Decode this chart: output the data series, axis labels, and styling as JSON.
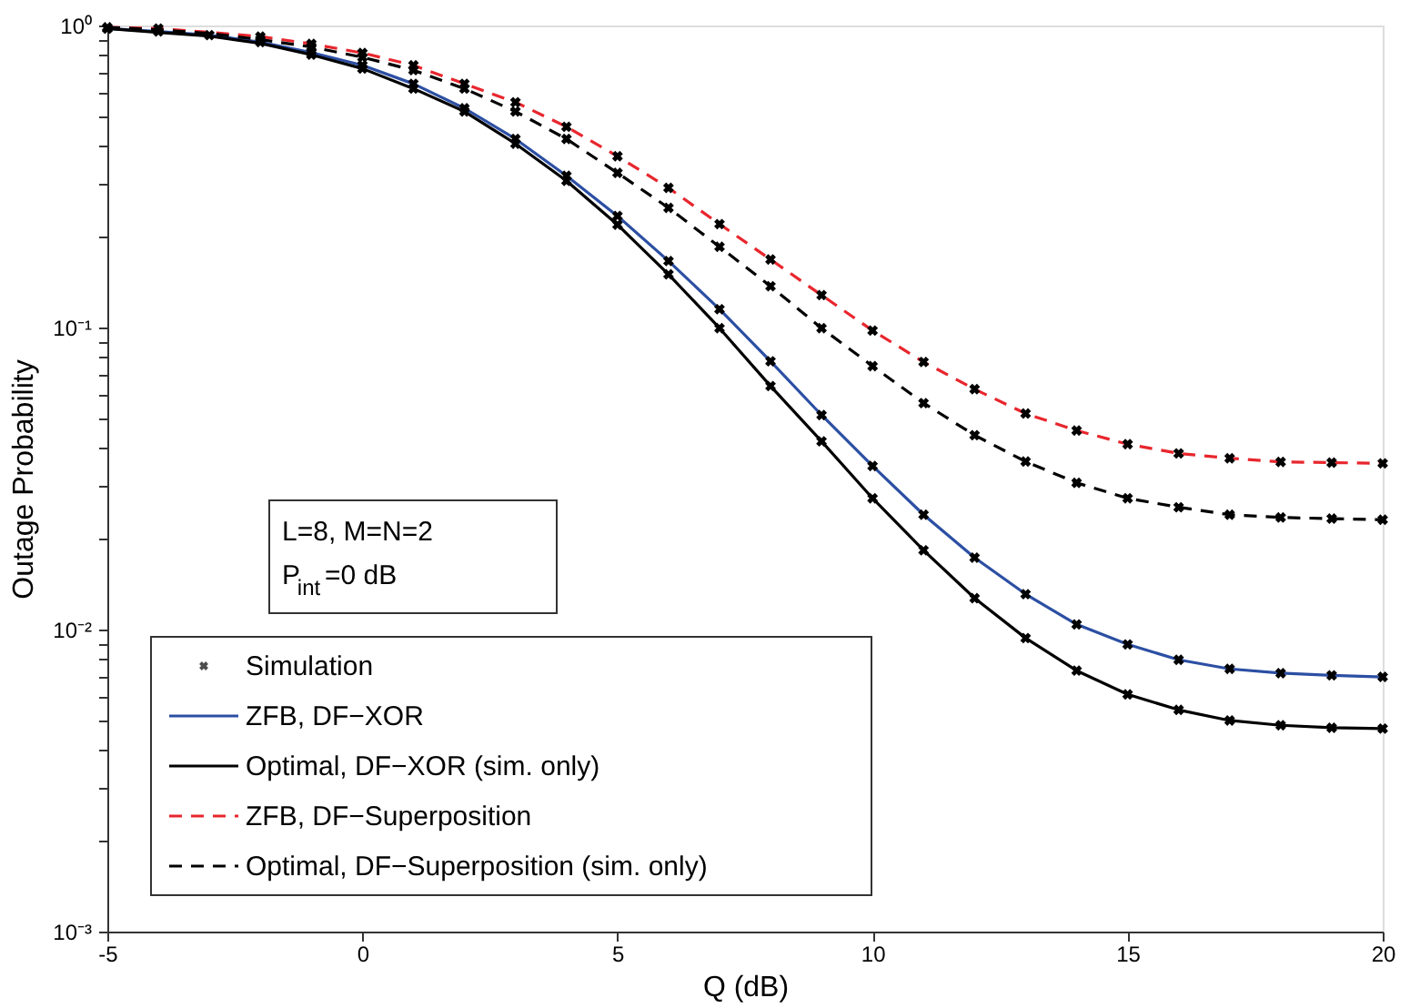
{
  "chart_data": {
    "type": "line",
    "xlabel": "Q (dB)",
    "ylabel": "Outage Probability",
    "log": "y",
    "xlim": [
      -5,
      20
    ],
    "xticks": [
      -5,
      0,
      5,
      10,
      15,
      20
    ],
    "ylim": [
      0.001,
      1
    ],
    "yticks": [
      {
        "value": 0.001,
        "label": "10⁻³"
      },
      {
        "value": 0.002,
        "label": null
      },
      {
        "value": 0.003,
        "label": null
      },
      {
        "value": 0.004,
        "label": null
      },
      {
        "value": 0.005,
        "label": null
      },
      {
        "value": 0.006,
        "label": null
      },
      {
        "value": 0.007,
        "label": null
      },
      {
        "value": 0.008,
        "label": null
      },
      {
        "value": 0.009,
        "label": null
      },
      {
        "value": 0.01,
        "label": "10⁻²"
      },
      {
        "value": 0.02,
        "label": null
      },
      {
        "value": 0.03,
        "label": null
      },
      {
        "value": 0.04,
        "label": null
      },
      {
        "value": 0.05,
        "label": null
      },
      {
        "value": 0.06,
        "label": null
      },
      {
        "value": 0.07,
        "label": null
      },
      {
        "value": 0.08,
        "label": null
      },
      {
        "value": 0.09,
        "label": null
      },
      {
        "value": 0.1,
        "label": "10⁻¹"
      },
      {
        "value": 0.2,
        "label": null
      },
      {
        "value": 0.3,
        "label": null
      },
      {
        "value": 0.4,
        "label": null
      },
      {
        "value": 0.5,
        "label": null
      },
      {
        "value": 0.6,
        "label": null
      },
      {
        "value": 0.7,
        "label": null
      },
      {
        "value": 0.8,
        "label": null
      },
      {
        "value": 0.9,
        "label": null
      },
      {
        "value": 1,
        "label": "10⁰"
      }
    ],
    "x": [
      -5,
      -4,
      -3,
      -2,
      -1,
      0,
      1,
      2,
      3,
      4,
      5,
      6,
      7,
      8,
      9,
      10,
      11,
      12,
      13,
      14,
      15,
      16,
      17,
      18,
      19,
      20
    ],
    "grid": false,
    "legend": "bottom left",
    "annotations": [
      "L=8, M=N=2",
      "P$_{int}$=0 dB"
    ],
    "series": [
      {
        "name": "Simulation",
        "type": "scatter",
        "marker": "cross",
        "color": "#000000",
        "x": [
          -5,
          -4,
          -3,
          -2,
          -1,
          0,
          1,
          2,
          3,
          4,
          5,
          6,
          7,
          8,
          9,
          10,
          11,
          12,
          13,
          14,
          15,
          16,
          17,
          18,
          19,
          20,
          -5,
          -1,
          0,
          1,
          2,
          3,
          4,
          5,
          6,
          7,
          8,
          9,
          10,
          11,
          12,
          13,
          14,
          15,
          16,
          17,
          18,
          19,
          20,
          -4,
          -2,
          -1,
          0,
          1,
          2,
          3,
          4,
          5,
          6,
          7,
          8,
          9,
          10,
          11,
          12,
          13,
          14,
          15,
          16,
          17,
          18,
          19,
          20,
          -5,
          -2,
          -1,
          0,
          1,
          2,
          3,
          4,
          5,
          6,
          7,
          8,
          9,
          10,
          11,
          12,
          13,
          14,
          15,
          16,
          17,
          18,
          19,
          20
        ],
        "values": [
          0.977,
          0.955,
          0.929,
          0.881,
          0.813,
          0.738,
          0.641,
          0.532,
          0.421,
          0.318,
          0.234,
          0.166,
          0.115,
          0.0773,
          0.0513,
          0.0348,
          0.024,
          0.0173,
          0.0131,
          0.0104,
          0.00893,
          0.00794,
          0.00741,
          0.00717,
          0.00705,
          0.00697,
          0.977,
          0.8,
          0.72,
          0.618,
          0.519,
          0.406,
          0.306,
          0.219,
          0.15,
          0.0995,
          0.064,
          0.042,
          0.0272,
          0.0183,
          0.0127,
          0.00937,
          0.00731,
          0.0061,
          0.00542,
          0.005,
          0.00482,
          0.00473,
          0.0047,
          0.977,
          0.919,
          0.869,
          0.811,
          0.738,
          0.641,
          0.557,
          0.462,
          0.369,
          0.29,
          0.22,
          0.168,
          0.128,
          0.0977,
          0.0769,
          0.0625,
          0.0519,
          0.0456,
          0.0411,
          0.0383,
          0.0369,
          0.0359,
          0.0357,
          0.0355,
          0.986,
          0.898,
          0.849,
          0.785,
          0.711,
          0.618,
          0.519,
          0.421,
          0.325,
          0.249,
          0.185,
          0.137,
          0.0995,
          0.0745,
          0.0562,
          0.044,
          0.036,
          0.0306,
          0.0272,
          0.0254,
          0.024,
          0.0235,
          0.0233,
          0.0231
        ]
      },
      {
        "name": "ZFB, DF−XOR",
        "type": "line",
        "marker": "none",
        "line_style": "solid",
        "color": "#2c4fa3",
        "values": [
          0.977,
          0.955,
          0.929,
          0.881,
          0.813,
          0.738,
          0.641,
          0.532,
          0.421,
          0.318,
          0.234,
          0.166,
          0.115,
          0.0773,
          0.0513,
          0.0348,
          0.024,
          0.0173,
          0.0131,
          0.0104,
          0.00893,
          0.00794,
          0.00741,
          0.00717,
          0.00705,
          0.00697
        ]
      },
      {
        "name": "Optimal, DF−XOR (sim. only)",
        "type": "line",
        "marker": "none",
        "line_style": "solid",
        "color": "#000000",
        "values": [
          0.977,
          0.949,
          0.922,
          0.873,
          0.8,
          0.72,
          0.618,
          0.519,
          0.406,
          0.306,
          0.219,
          0.15,
          0.0995,
          0.064,
          0.042,
          0.0272,
          0.0183,
          0.0127,
          0.00937,
          0.00731,
          0.0061,
          0.00542,
          0.005,
          0.00482,
          0.00473,
          0.0047
        ]
      },
      {
        "name": "ZFB, DF−Superposition",
        "type": "line",
        "marker": "none",
        "line_style": "dashed",
        "color": "#e8262d",
        "values": [
          0.986,
          0.977,
          0.949,
          0.919,
          0.869,
          0.811,
          0.738,
          0.641,
          0.557,
          0.462,
          0.369,
          0.29,
          0.22,
          0.168,
          0.128,
          0.0977,
          0.0769,
          0.0625,
          0.0519,
          0.0456,
          0.0411,
          0.0383,
          0.0369,
          0.0359,
          0.0357,
          0.0355
        ]
      },
      {
        "name": "Optimal, DF−Superposition (sim. only)",
        "type": "line",
        "marker": "none",
        "line_style": "dashed",
        "color": "#000000",
        "values": [
          0.986,
          0.968,
          0.941,
          0.898,
          0.849,
          0.785,
          0.711,
          0.618,
          0.519,
          0.421,
          0.325,
          0.249,
          0.185,
          0.137,
          0.0995,
          0.0745,
          0.0562,
          0.044,
          0.036,
          0.0306,
          0.0272,
          0.0254,
          0.024,
          0.0235,
          0.0233,
          0.0231
        ]
      }
    ]
  }
}
